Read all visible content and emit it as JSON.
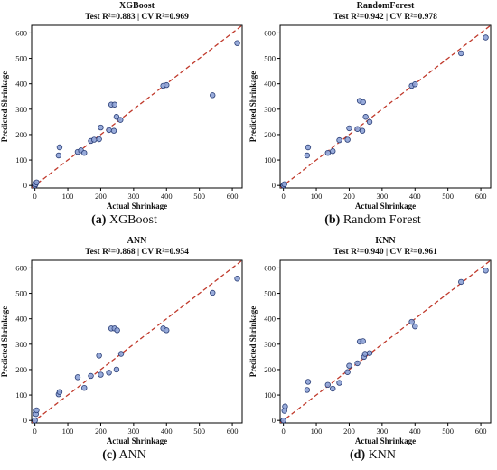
{
  "colors": {
    "point_fill": "#8da2d6",
    "point_stroke": "#2b3f77",
    "line": "#c0392b",
    "frame": "#000000"
  },
  "chart_data": [
    {
      "type": "scatter",
      "title": "XGBoost",
      "subtitle": "Test R²=0.883 | CV R²=0.969",
      "xlabel": "Actual Shrinkage",
      "ylabel": "Predicted Shrinkage",
      "caption_letter": "(a)",
      "caption_text": "XGBoost",
      "xlim": [
        -10,
        630
      ],
      "ylim": [
        -10,
        630
      ],
      "xticks": [
        0,
        100,
        200,
        300,
        400,
        500,
        600
      ],
      "yticks": [
        0,
        100,
        200,
        300,
        400,
        500,
        600
      ],
      "reference_line": "y = x",
      "points": [
        [
          0,
          0
        ],
        [
          2,
          5
        ],
        [
          5,
          12
        ],
        [
          72,
          118
        ],
        [
          75,
          150
        ],
        [
          130,
          132
        ],
        [
          140,
          138
        ],
        [
          150,
          128
        ],
        [
          170,
          175
        ],
        [
          180,
          180
        ],
        [
          195,
          182
        ],
        [
          200,
          228
        ],
        [
          225,
          218
        ],
        [
          232,
          318
        ],
        [
          242,
          318
        ],
        [
          240,
          215
        ],
        [
          248,
          270
        ],
        [
          260,
          258
        ],
        [
          390,
          392
        ],
        [
          400,
          395
        ],
        [
          540,
          355
        ],
        [
          615,
          560
        ]
      ]
    },
    {
      "type": "scatter",
      "title": "RandomForest",
      "subtitle": "Test R²=0.942 | CV R²=0.978",
      "xlabel": "Actual Shrinkage",
      "ylabel": "Predicted Shrinkage",
      "caption_letter": "(b)",
      "caption_text": "Random Forest",
      "xlim": [
        -10,
        630
      ],
      "ylim": [
        -10,
        630
      ],
      "xticks": [
        0,
        100,
        200,
        300,
        400,
        500,
        600
      ],
      "yticks": [
        0,
        100,
        200,
        300,
        400,
        500,
        600
      ],
      "reference_line": "y = x",
      "points": [
        [
          0,
          0
        ],
        [
          3,
          5
        ],
        [
          72,
          118
        ],
        [
          75,
          150
        ],
        [
          135,
          128
        ],
        [
          150,
          135
        ],
        [
          170,
          178
        ],
        [
          195,
          180
        ],
        [
          200,
          225
        ],
        [
          225,
          222
        ],
        [
          232,
          333
        ],
        [
          242,
          328
        ],
        [
          240,
          215
        ],
        [
          250,
          270
        ],
        [
          262,
          250
        ],
        [
          390,
          392
        ],
        [
          400,
          398
        ],
        [
          540,
          520
        ],
        [
          615,
          582
        ]
      ]
    },
    {
      "type": "scatter",
      "title": "ANN",
      "subtitle": "Test R²=0.868 | CV R²=0.954",
      "xlabel": "Actual Shrinkage",
      "ylabel": "Predicted Shrinkage",
      "caption_letter": "(c)",
      "caption_text": "ANN",
      "xlim": [
        -10,
        630
      ],
      "ylim": [
        -10,
        630
      ],
      "xticks": [
        0,
        100,
        200,
        300,
        400,
        500,
        600
      ],
      "yticks": [
        0,
        100,
        200,
        300,
        400,
        500,
        600
      ],
      "reference_line": "y = x",
      "points": [
        [
          0,
          0
        ],
        [
          3,
          25
        ],
        [
          5,
          40
        ],
        [
          72,
          103
        ],
        [
          75,
          112
        ],
        [
          130,
          170
        ],
        [
          150,
          128
        ],
        [
          170,
          175
        ],
        [
          195,
          255
        ],
        [
          200,
          180
        ],
        [
          225,
          188
        ],
        [
          232,
          362
        ],
        [
          242,
          362
        ],
        [
          250,
          355
        ],
        [
          248,
          200
        ],
        [
          262,
          262
        ],
        [
          390,
          362
        ],
        [
          400,
          355
        ],
        [
          540,
          502
        ],
        [
          615,
          558
        ]
      ]
    },
    {
      "type": "scatter",
      "title": "KNN",
      "subtitle": "Test R²=0.940 | CV R²=0.961",
      "xlabel": "Actual Shrinkage",
      "ylabel": "Predicted Shrinkage",
      "caption_letter": "(d)",
      "caption_text": "KNN",
      "xlim": [
        -10,
        630
      ],
      "ylim": [
        -10,
        630
      ],
      "xticks": [
        0,
        100,
        200,
        300,
        400,
        500,
        600
      ],
      "yticks": [
        0,
        100,
        200,
        300,
        400,
        500,
        600
      ],
      "reference_line": "y = x",
      "points": [
        [
          0,
          0
        ],
        [
          3,
          38
        ],
        [
          5,
          55
        ],
        [
          72,
          120
        ],
        [
          75,
          152
        ],
        [
          135,
          140
        ],
        [
          150,
          125
        ],
        [
          170,
          148
        ],
        [
          195,
          190
        ],
        [
          200,
          215
        ],
        [
          225,
          225
        ],
        [
          232,
          310
        ],
        [
          242,
          312
        ],
        [
          245,
          250
        ],
        [
          248,
          262
        ],
        [
          262,
          265
        ],
        [
          390,
          388
        ],
        [
          400,
          370
        ],
        [
          540,
          545
        ],
        [
          615,
          590
        ]
      ]
    }
  ]
}
